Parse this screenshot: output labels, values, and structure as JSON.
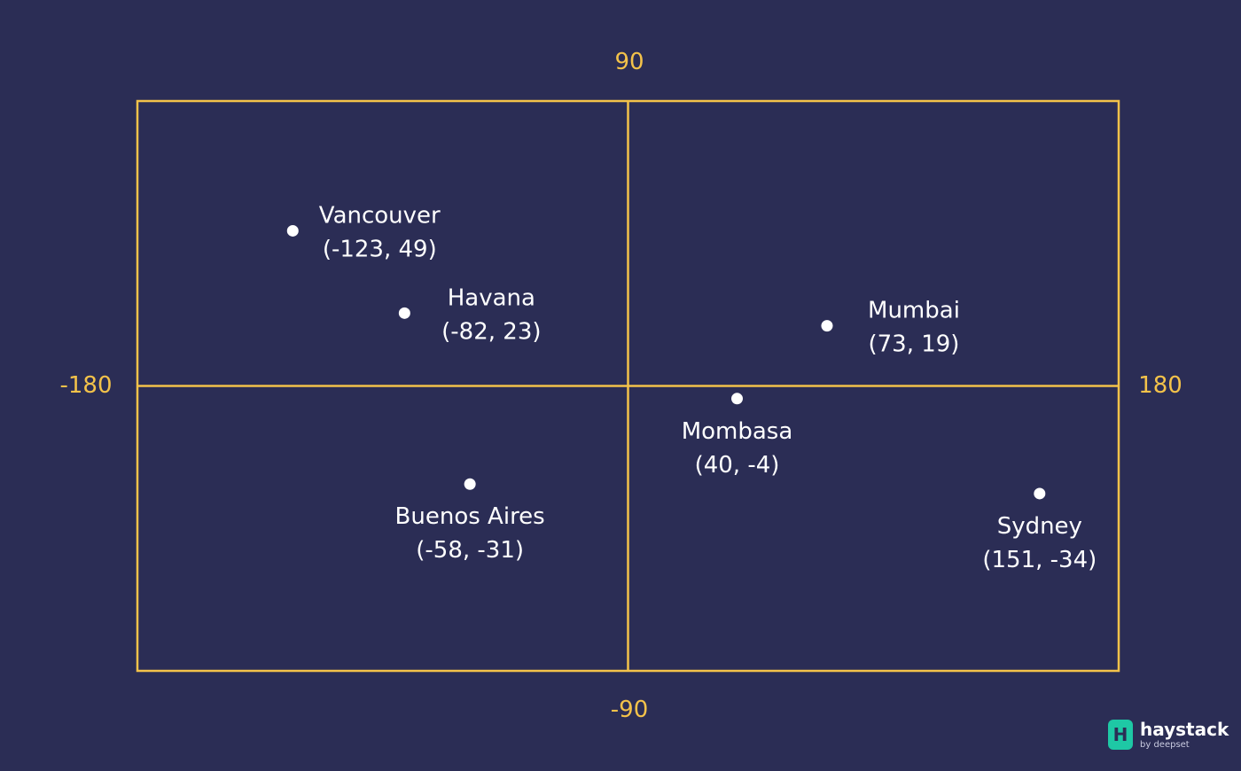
{
  "chart_data": {
    "type": "scatter",
    "xlim": [
      -180,
      180
    ],
    "ylim": [
      -90,
      90
    ],
    "grid": true,
    "axis_labels": {
      "top": "90",
      "bottom": "-90",
      "left": "-180",
      "right": "180"
    },
    "points": [
      {
        "name": "Vancouver",
        "coord_label": "(-123, 49)",
        "x": -123,
        "y": 49,
        "label_side": "right"
      },
      {
        "name": "Havana",
        "coord_label": "(-82, 23)",
        "x": -82,
        "y": 23,
        "label_side": "right"
      },
      {
        "name": "Mumbai",
        "coord_label": "(73, 19)",
        "x": 73,
        "y": 19,
        "label_side": "right"
      },
      {
        "name": "Buenos Aires",
        "coord_label": "(-58, -31)",
        "x": -58,
        "y": -31,
        "label_side": "below"
      },
      {
        "name": "Mombasa",
        "coord_label": "(40, -4)",
        "x": 40,
        "y": -4,
        "label_side": "below"
      },
      {
        "name": "Sydney",
        "coord_label": "(151, -34)",
        "x": 151,
        "y": -34,
        "label_side": "below"
      }
    ],
    "colors": {
      "background": "#2b2d55",
      "grid": "#f3c24a",
      "point": "#ffffff",
      "text": "#ffffff",
      "axis_text": "#f3c24a"
    }
  },
  "brand": {
    "icon": "haystack-logo-icon",
    "name": "haystack",
    "sub": "by deepset"
  }
}
